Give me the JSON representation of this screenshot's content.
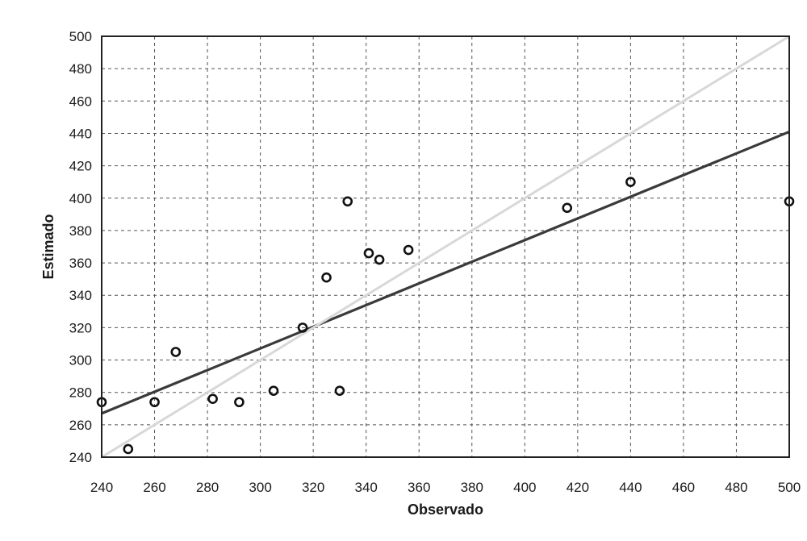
{
  "chart_data": {
    "type": "scatter",
    "title": "",
    "xlabel": "Observado",
    "ylabel": "Estimado",
    "xlim": [
      240,
      500
    ],
    "ylim": [
      240,
      500
    ],
    "xticks": [
      240,
      260,
      280,
      300,
      320,
      340,
      360,
      380,
      400,
      420,
      440,
      460,
      480,
      500
    ],
    "yticks": [
      240,
      260,
      280,
      300,
      320,
      340,
      360,
      380,
      400,
      420,
      440,
      460,
      480,
      500
    ],
    "grid": true,
    "legend": "none",
    "series": [
      {
        "marker": "circle",
        "color": "#111111",
        "points": [
          {
            "x": 240,
            "y": 274
          },
          {
            "x": 250,
            "y": 245
          },
          {
            "x": 260,
            "y": 274
          },
          {
            "x": 268,
            "y": 305
          },
          {
            "x": 282,
            "y": 276
          },
          {
            "x": 292,
            "y": 274
          },
          {
            "x": 305,
            "y": 281
          },
          {
            "x": 316,
            "y": 320
          },
          {
            "x": 325,
            "y": 351
          },
          {
            "x": 330,
            "y": 281
          },
          {
            "x": 333,
            "y": 398
          },
          {
            "x": 341,
            "y": 366
          },
          {
            "x": 345,
            "y": 362
          },
          {
            "x": 356,
            "y": 368
          },
          {
            "x": 416,
            "y": 394
          },
          {
            "x": 440,
            "y": 410
          },
          {
            "x": 500,
            "y": 398
          }
        ]
      }
    ],
    "lines": [
      {
        "kind": "regression",
        "color": "#3a3a3a",
        "from": [
          240,
          267
        ],
        "to": [
          500,
          441
        ]
      },
      {
        "kind": "identity",
        "color": "#d8d8d8",
        "from": [
          240,
          240
        ],
        "to": [
          500,
          500
        ]
      }
    ]
  }
}
